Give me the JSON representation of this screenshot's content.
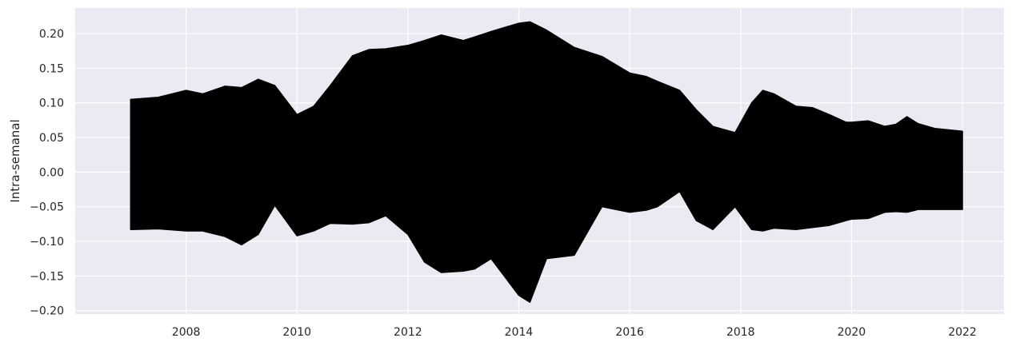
{
  "chart_data": {
    "type": "area",
    "ylabel": "Intra-semanal",
    "xlabel": "",
    "xlim": [
      2006.0,
      2022.75
    ],
    "ylim": [
      -0.205,
      0.237
    ],
    "x_ticks": [
      "2008",
      "2010",
      "2012",
      "2014",
      "2016",
      "2018",
      "2020",
      "2022"
    ],
    "y_ticks": [
      "0.20",
      "0.15",
      "0.10",
      "0.05",
      "0.00",
      "−0.05",
      "−0.10",
      "−0.15",
      "−0.20"
    ],
    "grid": true,
    "background": "#eaeaf2",
    "grid_color": "#ffffff",
    "series": [
      {
        "fill_color": "#000000",
        "x": [
          2007.0,
          2007.5,
          2008.0,
          2008.3,
          2008.7,
          2009.0,
          2009.3,
          2009.6,
          2010.0,
          2010.3,
          2010.6,
          2011.0,
          2011.3,
          2011.6,
          2012.0,
          2012.3,
          2012.6,
          2013.0,
          2013.2,
          2013.5,
          2014.0,
          2014.2,
          2014.5,
          2015.0,
          2015.5,
          2016.0,
          2016.3,
          2016.5,
          2016.9,
          2017.2,
          2017.5,
          2017.9,
          2018.2,
          2018.4,
          2018.6,
          2019.0,
          2019.3,
          2019.6,
          2019.9,
          2020.0,
          2020.3,
          2020.6,
          2020.8,
          2021.0,
          2021.2,
          2021.5,
          2022.0
        ],
        "upper": [
          0.105,
          0.108,
          0.118,
          0.113,
          0.124,
          0.122,
          0.134,
          0.125,
          0.083,
          0.095,
          0.125,
          0.168,
          0.177,
          0.178,
          0.183,
          0.19,
          0.198,
          0.19,
          0.195,
          0.203,
          0.215,
          0.217,
          0.205,
          0.18,
          0.167,
          0.143,
          0.138,
          0.131,
          0.118,
          0.09,
          0.066,
          0.057,
          0.1,
          0.118,
          0.113,
          0.095,
          0.093,
          0.083,
          0.072,
          0.072,
          0.074,
          0.066,
          0.069,
          0.08,
          0.07,
          0.063,
          0.059
        ],
        "lower": [
          -0.083,
          -0.082,
          -0.085,
          -0.085,
          -0.093,
          -0.105,
          -0.09,
          -0.048,
          -0.092,
          -0.085,
          -0.074,
          -0.075,
          -0.073,
          -0.063,
          -0.09,
          -0.13,
          -0.145,
          -0.143,
          -0.14,
          -0.125,
          -0.178,
          -0.188,
          -0.125,
          -0.12,
          -0.05,
          -0.058,
          -0.055,
          -0.05,
          -0.028,
          -0.07,
          -0.083,
          -0.05,
          -0.083,
          -0.085,
          -0.081,
          -0.083,
          -0.08,
          -0.077,
          -0.07,
          -0.068,
          -0.067,
          -0.058,
          -0.057,
          -0.058,
          -0.054,
          -0.054,
          -0.054
        ]
      }
    ]
  }
}
